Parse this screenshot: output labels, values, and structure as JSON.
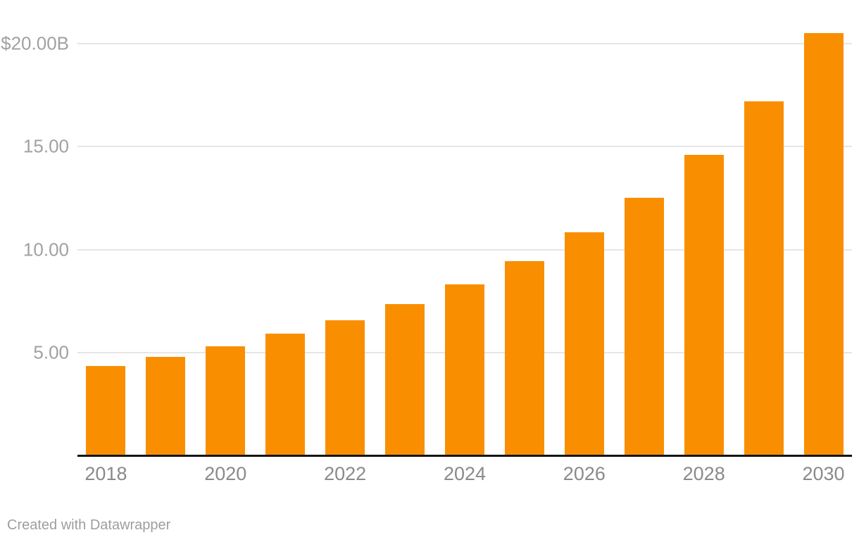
{
  "footer": {
    "credit": "Created with Datawrapper"
  },
  "colors": {
    "background": "#ffffff",
    "bar": "#f98f00",
    "grid_line": "#e6e6e6",
    "axis_line": "#141414",
    "y_tick_label": "#a1a1a1",
    "x_tick_label": "#8a8a8a",
    "footer_text": "#9e9e9e"
  },
  "chart_data": {
    "type": "bar",
    "categories": [
      "2018",
      "2019",
      "2020",
      "2021",
      "2022",
      "2023",
      "2024",
      "2025",
      "2026",
      "2027",
      "2028",
      "2029",
      "2030"
    ],
    "values": [
      4.35,
      4.8,
      5.3,
      5.9,
      6.55,
      7.35,
      8.3,
      9.45,
      10.85,
      12.5,
      14.6,
      17.2,
      20.5
    ],
    "unit": "USD billions (read from $20.00B axis label)",
    "xlabel": "",
    "ylabel": "",
    "ylim": [
      0,
      20.5
    ],
    "grid": "horizontal",
    "legend": "none",
    "yticks": [
      {
        "value": 5,
        "label": "5.00"
      },
      {
        "value": 10,
        "label": "10.00"
      },
      {
        "value": 15,
        "label": "15.00"
      },
      {
        "value": 20,
        "label": "$20.00B"
      }
    ],
    "xticks_labeled": [
      "2018",
      "2020",
      "2022",
      "2024",
      "2026",
      "2028",
      "2030"
    ]
  }
}
